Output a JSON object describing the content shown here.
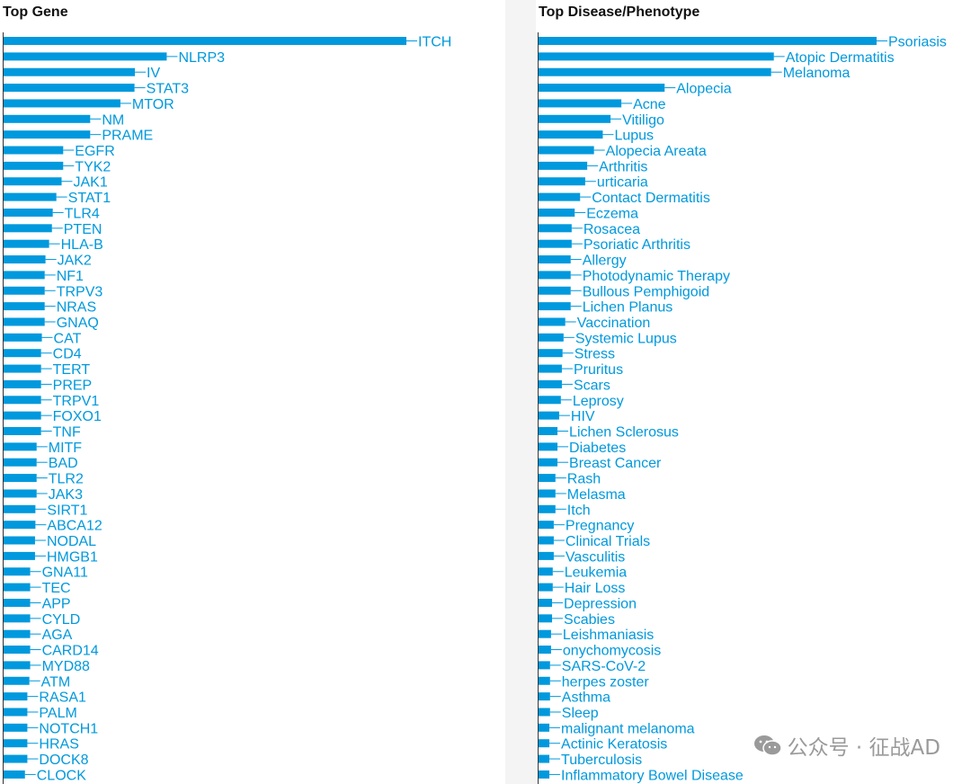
{
  "colors": {
    "bar": "#0099dd",
    "label": "#0099dd",
    "axis": "#333333",
    "watermark": "#9a9a9a"
  },
  "watermark": {
    "icon": "wechat-icon",
    "text": "公众号 · 征战AD"
  },
  "chart_data": [
    {
      "type": "bar",
      "orientation": "horizontal",
      "title": "Top Gene",
      "xlabel": "",
      "ylabel": "",
      "grid": false,
      "xlim": [
        0,
        100
      ],
      "labels_at_bar_end": true,
      "categories": [
        "ITCH",
        "NLRP3",
        "IV",
        "STAT3",
        "MTOR",
        "NM",
        "PRAME",
        "EGFR",
        "TYK2",
        "JAK1",
        "STAT1",
        "TLR4",
        "PTEN",
        "HLA-B",
        "JAK2",
        "NF1",
        "TRPV3",
        "NRAS",
        "GNAQ",
        "CAT",
        "CD4",
        "TERT",
        "PREP",
        "TRPV1",
        "FOXO1",
        "TNF",
        "MITF",
        "BAD",
        "TLR2",
        "JAK3",
        "SIRT1",
        "ABCA12",
        "NODAL",
        "HMGB1",
        "GNA11",
        "TEC",
        "APP",
        "CYLD",
        "AGA",
        "CARD14",
        "MYD88",
        "ATM",
        "RASA1",
        "PALM",
        "NOTCH1",
        "HRAS",
        "DOCK8",
        "CLOCK"
      ],
      "values": [
        100,
        40.5,
        32.6,
        32.5,
        29.0,
        21.5,
        21.5,
        14.8,
        14.8,
        14.4,
        13.1,
        12.2,
        12.0,
        11.3,
        10.4,
        10.2,
        10.2,
        10.2,
        10.2,
        9.5,
        9.3,
        9.3,
        9.3,
        9.3,
        9.3,
        9.3,
        8.2,
        8.2,
        8.2,
        8.2,
        7.9,
        7.9,
        7.8,
        7.8,
        6.6,
        6.6,
        6.6,
        6.6,
        6.6,
        6.6,
        6.6,
        6.4,
        5.9,
        5.9,
        5.9,
        5.9,
        5.9,
        5.3
      ]
    },
    {
      "type": "bar",
      "orientation": "horizontal",
      "title": "Top Disease/Phenotype",
      "xlabel": "",
      "ylabel": "",
      "grid": false,
      "xlim": [
        0,
        100
      ],
      "labels_at_bar_end": true,
      "categories": [
        "Psoriasis",
        "Atopic Dermatitis",
        "Melanoma",
        "Alopecia",
        "Acne",
        "Vitiligo",
        "Lupus",
        "Alopecia Areata",
        "Arthritis",
        "urticaria",
        "Contact Dermatitis",
        "Eczema",
        "Rosacea",
        "Psoriatic Arthritis",
        "Allergy",
        "Photodynamic Therapy",
        "Bullous Pemphigoid",
        "Lichen Planus",
        "Vaccination",
        "Systemic Lupus",
        "Stress",
        "Pruritus",
        "Scars",
        "Leprosy",
        "HIV",
        "Lichen Sclerosus",
        "Diabetes",
        "Breast Cancer",
        "Rash",
        "Melasma",
        "Itch",
        "Pregnancy",
        "Clinical Trials",
        "Vasculitis",
        "Leukemia",
        "Hair Loss",
        "Depression",
        "Scabies",
        "Leishmaniasis",
        "onychomycosis",
        "SARS-CoV-2",
        "herpes zoster",
        "Asthma",
        "Sleep",
        "malignant melanoma",
        "Actinic Keratosis",
        "Tuberculosis",
        "Inflammatory Bowel Disease"
      ],
      "values": [
        100,
        69.6,
        68.8,
        37.3,
        24.5,
        21.3,
        19.0,
        16.4,
        14.4,
        13.8,
        12.3,
        10.7,
        9.8,
        9.8,
        9.5,
        9.5,
        9.5,
        9.5,
        7.9,
        7.4,
        7.1,
        6.9,
        6.9,
        6.6,
        6.1,
        5.6,
        5.6,
        5.6,
        5.0,
        5.0,
        5.0,
        4.5,
        4.5,
        4.5,
        4.2,
        4.2,
        4.0,
        4.0,
        3.7,
        3.7,
        3.4,
        3.4,
        3.4,
        3.4,
        3.2,
        3.2,
        3.2,
        3.2
      ]
    }
  ]
}
